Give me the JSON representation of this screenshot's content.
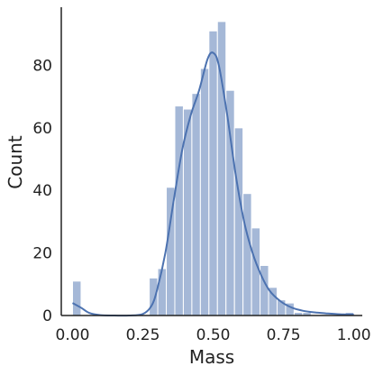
{
  "chart_data": {
    "type": "bar",
    "subtype": "histogram-with-kde",
    "title": "",
    "xlabel": "Mass",
    "ylabel": "Count",
    "xlim": [
      -0.04,
      1.03
    ],
    "ylim": [
      0,
      98
    ],
    "xticks": [
      0.0,
      0.25,
      0.5,
      0.75,
      1.0
    ],
    "xtick_labels": [
      "0.00",
      "0.25",
      "0.50",
      "0.75",
      "1.00"
    ],
    "yticks": [
      0,
      20,
      40,
      60,
      80
    ],
    "ytick_labels": [
      "0",
      "20",
      "40",
      "60",
      "80"
    ],
    "grid": false,
    "legend": "none",
    "bar_color": "#4c72b0",
    "kde_color": "#4c72b0",
    "bins": {
      "start": 0.0,
      "width": 0.0303,
      "counts": [
        11,
        0,
        0,
        0,
        0,
        0,
        0,
        0,
        0,
        12,
        15,
        41,
        67,
        66,
        71,
        79,
        91,
        94,
        72,
        60,
        39,
        28,
        16,
        9,
        5,
        4,
        1,
        1,
        0,
        0,
        0,
        0,
        1
      ]
    },
    "kde": {
      "x": [
        0.0,
        0.03,
        0.06,
        0.1,
        0.15,
        0.2,
        0.25,
        0.28,
        0.3,
        0.33,
        0.36,
        0.39,
        0.42,
        0.45,
        0.48,
        0.5,
        0.52,
        0.55,
        0.58,
        0.61,
        0.64,
        0.67,
        0.7,
        0.74,
        0.78,
        0.82,
        0.86,
        0.9,
        0.95,
        1.0
      ],
      "y": [
        4,
        2.5,
        0.8,
        0.1,
        0,
        0,
        0.5,
        3,
        8,
        20,
        37,
        53,
        64,
        72,
        82,
        84,
        80,
        64,
        45,
        30,
        20,
        13,
        8,
        4.5,
        2.5,
        1.5,
        1,
        0.7,
        0.4,
        0.3
      ]
    }
  }
}
